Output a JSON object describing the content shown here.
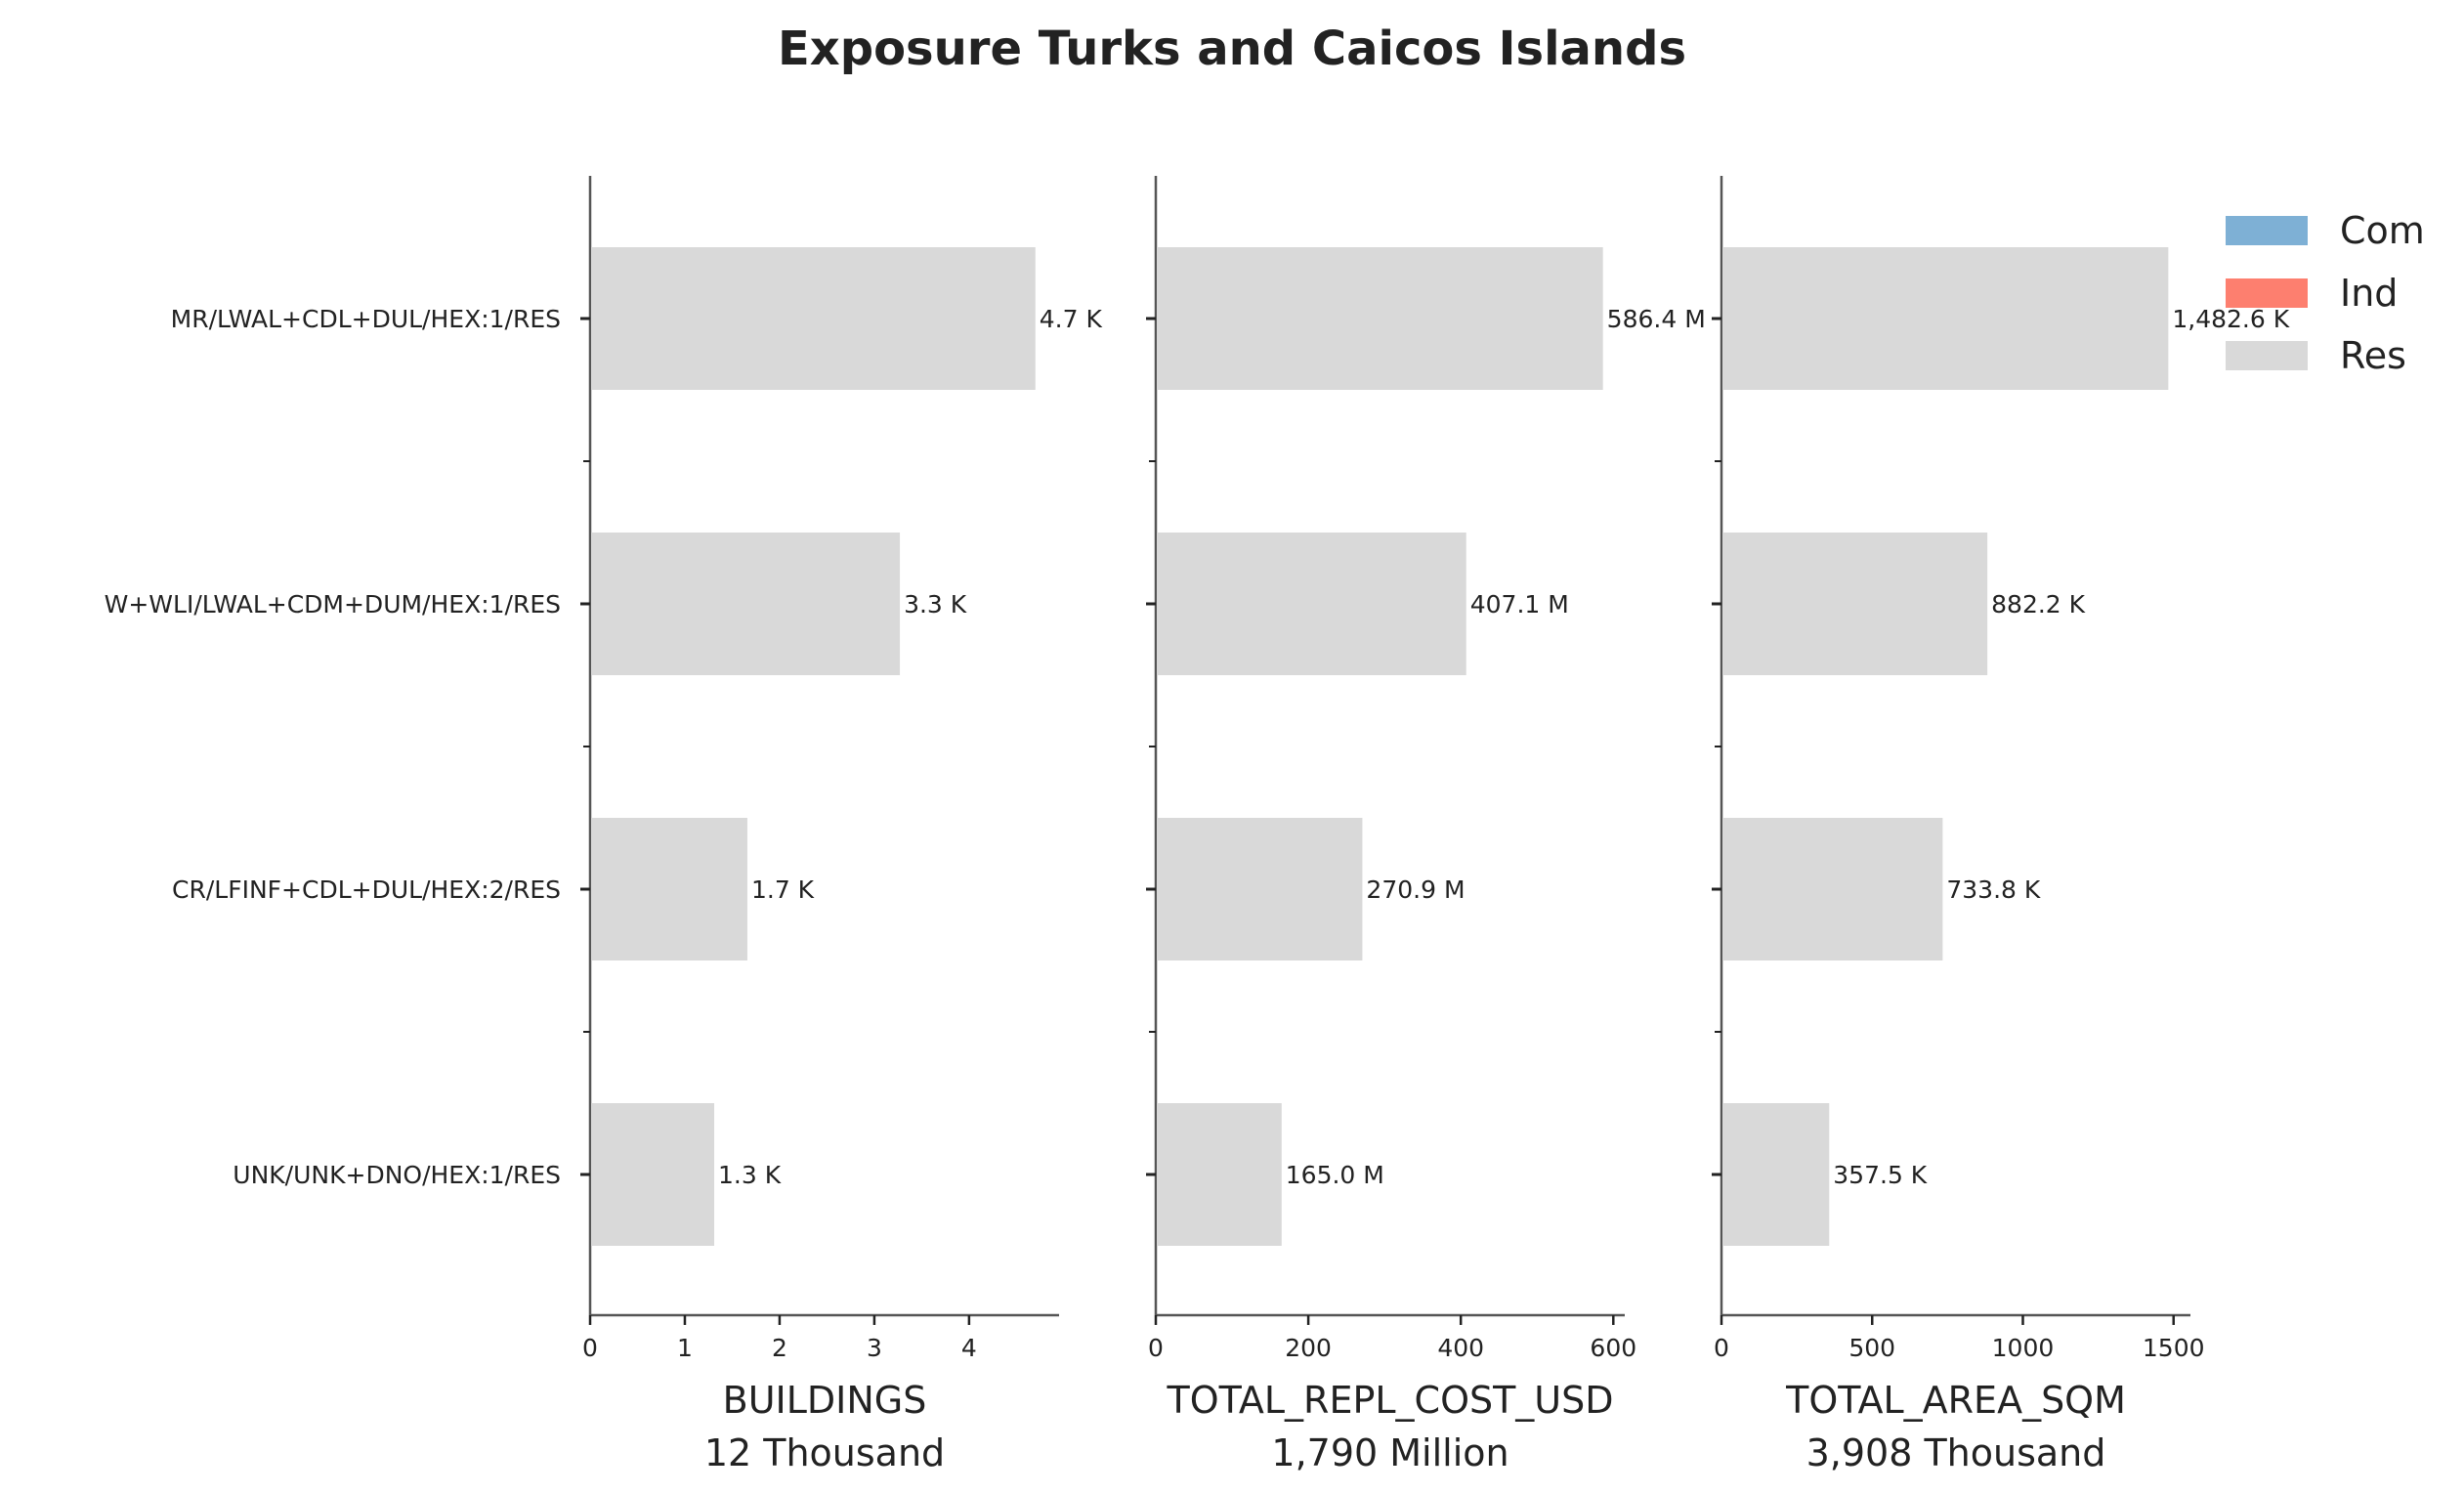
{
  "chart_data": {
    "type": "bar",
    "orientation": "horizontal",
    "title": "Exposure Turks and Caicos Islands",
    "categories": [
      "MR/LWAL+CDL+DUL/HEX:1/RES",
      "W+WLI/LWAL+CDM+DUM/HEX:1/RES",
      "CR/LFINF+CDL+DUL/HEX:2/RES",
      "UNK/UNK+DNO/HEX:1/RES"
    ],
    "legend": {
      "placement": "top-right",
      "entries": [
        {
          "name": "Com",
          "color": "#7eb0d5"
        },
        {
          "name": "Ind",
          "color": "#fd7f6f"
        },
        {
          "name": "Res",
          "color": "#d9d9d9"
        }
      ]
    },
    "panels": [
      {
        "xlabel": "BUILDINGS",
        "total": "12 Thousand",
        "xlim": [
          0,
          4.95
        ],
        "ticks": [
          0,
          1,
          2,
          3,
          4
        ],
        "tick_labels": [
          "0",
          "1",
          "2",
          "3",
          "4"
        ],
        "series": [
          {
            "name": "Res",
            "color": "#d9d9d9",
            "values": [
              4.7,
              3.27,
              1.66,
              1.31
            ]
          }
        ],
        "value_labels": [
          "4.7 K",
          "3.3 K",
          "1.7 K",
          "1.3 K"
        ]
      },
      {
        "xlabel": "TOTAL_REPL_COST_USD",
        "total": "1,790 Million",
        "xlim": [
          0,
          615
        ],
        "ticks": [
          0,
          200,
          400,
          600
        ],
        "tick_labels": [
          "0",
          "200",
          "400",
          "600"
        ],
        "series": [
          {
            "name": "Res",
            "color": "#d9d9d9",
            "values": [
              586.4,
              407.1,
              270.9,
              165.0
            ]
          }
        ],
        "value_labels": [
          "586.4 M",
          "407.1 M",
          "270.9 M",
          "165.0 M"
        ]
      },
      {
        "xlabel": "TOTAL_AREA_SQM",
        "total": "3,908 Thousand",
        "xlim": [
          0,
          1556
        ],
        "ticks": [
          0,
          500,
          1000,
          1500
        ],
        "tick_labels": [
          "0",
          "500",
          "1000",
          "1500"
        ],
        "series": [
          {
            "name": "Res",
            "color": "#d9d9d9",
            "values": [
              1482.6,
              882.2,
              733.8,
              357.5
            ]
          }
        ],
        "value_labels": [
          "1,482.6 K",
          "882.2 K",
          "733.8 K",
          "357.5 K"
        ]
      }
    ]
  }
}
